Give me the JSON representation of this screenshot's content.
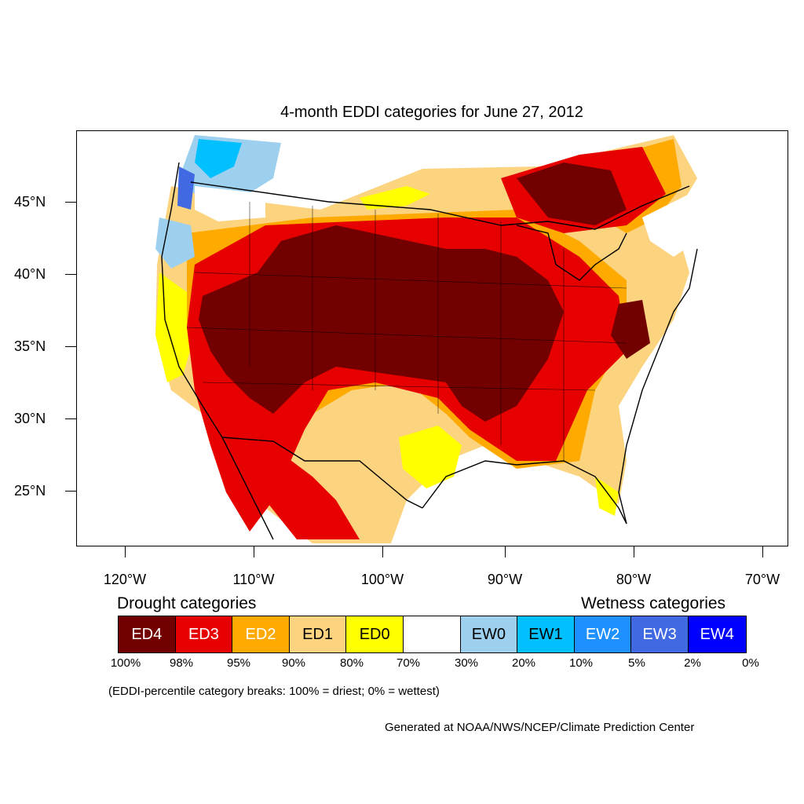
{
  "title": "4-month EDDI categories for June 27, 2012",
  "lat_labels": [
    "45°N",
    "40°N",
    "35°N",
    "30°N",
    "25°N"
  ],
  "lon_labels": [
    "120°W",
    "110°W",
    "100°W",
    "90°W",
    "80°W",
    "70°W"
  ],
  "map": {
    "extent_lon": [
      -124.4,
      -68.5
    ],
    "extent_lat": [
      21,
      50
    ],
    "background": "#ffffff"
  },
  "legend": {
    "drought_heading": "Drought categories",
    "wetness_heading": "Wetness categories",
    "categories": [
      {
        "label": "ED4",
        "color": "#730000",
        "text_color": "#ffffff"
      },
      {
        "label": "ED3",
        "color": "#e60000",
        "text_color": "#ffffff"
      },
      {
        "label": "ED2",
        "color": "#ffaa00",
        "text_color": "#ffffff"
      },
      {
        "label": "ED1",
        "color": "#fcd37f",
        "text_color": "#000000"
      },
      {
        "label": "ED0",
        "color": "#ffff00",
        "text_color": "#000000"
      },
      {
        "label": "",
        "color": "#ffffff",
        "text_color": "#000000"
      },
      {
        "label": "EW0",
        "color": "#9dd0ef",
        "text_color": "#000000"
      },
      {
        "label": "EW1",
        "color": "#00c0ff",
        "text_color": "#000000"
      },
      {
        "label": "EW2",
        "color": "#1e90ff",
        "text_color": "#ffffff"
      },
      {
        "label": "EW3",
        "color": "#4169e1",
        "text_color": "#ffffff"
      },
      {
        "label": "EW4",
        "color": "#0000ff",
        "text_color": "#ffffff"
      }
    ],
    "percent_breaks": [
      "100%",
      "98%",
      "95%",
      "90%",
      "80%",
      "70%",
      "30%",
      "20%",
      "10%",
      "5%",
      "2%",
      "0%"
    ],
    "note": "(EDDI-percentile category breaks: 100% = driest; 0% = wettest)"
  },
  "credit": "Generated at NOAA/NWS/NCEP/Climate Prediction Center"
}
